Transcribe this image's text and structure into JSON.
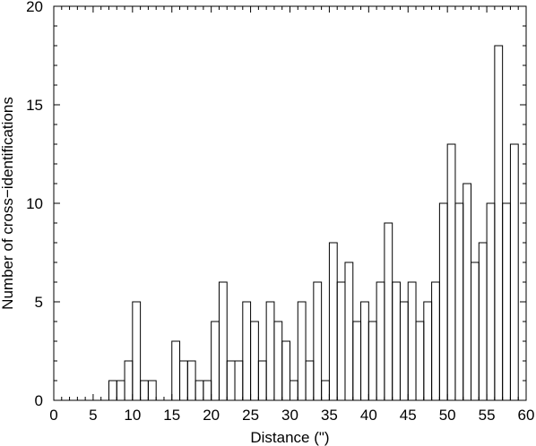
{
  "chart_data": {
    "type": "bar",
    "title": "",
    "xlabel": "Distance (\")",
    "ylabel": "Number of cross−identifications",
    "xlim": [
      0,
      60
    ],
    "ylim": [
      0,
      20
    ],
    "grid": false,
    "bin_width": 1,
    "bin_starts": [
      0,
      1,
      2,
      3,
      4,
      5,
      6,
      7,
      8,
      9,
      10,
      11,
      12,
      13,
      14,
      15,
      16,
      17,
      18,
      19,
      20,
      21,
      22,
      23,
      24,
      25,
      26,
      27,
      28,
      29,
      30,
      31,
      32,
      33,
      34,
      35,
      36,
      37,
      38,
      39,
      40,
      41,
      42,
      43,
      44,
      45,
      46,
      47,
      48,
      49,
      50,
      51,
      52,
      53,
      54,
      55,
      56,
      57,
      58,
      59
    ],
    "values": [
      0,
      0,
      0,
      0,
      0,
      0,
      0,
      1,
      1,
      2,
      5,
      1,
      1,
      0,
      0,
      3,
      2,
      2,
      1,
      1,
      4,
      6,
      2,
      2,
      5,
      4,
      2,
      5,
      4,
      3,
      1,
      5,
      2,
      6,
      1,
      8,
      6,
      7,
      4,
      5,
      4,
      6,
      9,
      6,
      5,
      6,
      4,
      5,
      6,
      10,
      13,
      10,
      11,
      7,
      8,
      10,
      18,
      10,
      13,
      0
    ],
    "x_ticks": [
      "0",
      "5",
      "10",
      "15",
      "20",
      "25",
      "30",
      "35",
      "40",
      "45",
      "50",
      "55",
      "60"
    ],
    "y_ticks": [
      "0",
      "5",
      "10",
      "15",
      "20"
    ]
  }
}
